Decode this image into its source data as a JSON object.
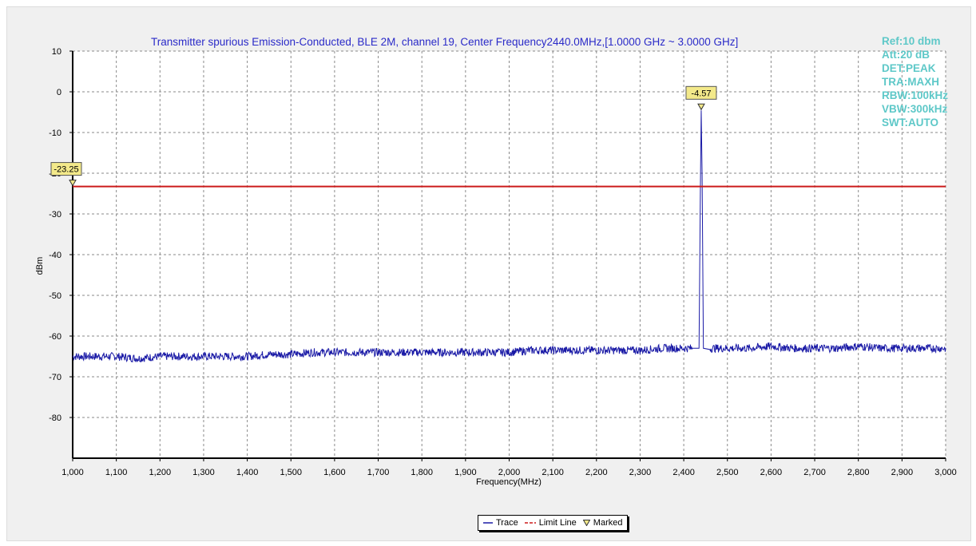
{
  "chart_data": {
    "type": "line",
    "title": "Transmitter spurious Emission-Conducted, BLE 2M, channel 19, Center Frequency2440.0MHz,[1.0000 GHz ~ 3.0000 GHz]",
    "xlabel": "Frequency(MHz)",
    "ylabel": "dBm",
    "xlim": [
      1000,
      3000
    ],
    "ylim": [
      -90,
      10
    ],
    "x_ticks": [
      "1,000",
      "1,100",
      "1,200",
      "1,300",
      "1,400",
      "1,500",
      "1,600",
      "1,700",
      "1,800",
      "1,900",
      "2,000",
      "2,100",
      "2,200",
      "2,300",
      "2,400",
      "2,500",
      "2,600",
      "2,700",
      "2,800",
      "2,900",
      "3,000"
    ],
    "y_ticks": [
      "10",
      "0",
      "-10",
      "-20",
      "-30",
      "-40",
      "-50",
      "-60",
      "-70",
      "-80"
    ],
    "grid": true,
    "legend_position": "bottom-center",
    "series": [
      {
        "name": "Trace",
        "color": "#1a1aa6",
        "x": [
          1000,
          1050,
          1100,
          1150,
          1200,
          1250,
          1300,
          1350,
          1400,
          1450,
          1500,
          1550,
          1600,
          1650,
          1700,
          1750,
          1800,
          1850,
          1900,
          1950,
          2000,
          2050,
          2100,
          2150,
          2200,
          2250,
          2300,
          2350,
          2400,
          2420,
          2435,
          2438,
          2440,
          2442,
          2445,
          2460,
          2500,
          2550,
          2600,
          2650,
          2700,
          2750,
          2800,
          2850,
          2900,
          2950,
          3000
        ],
        "values": [
          -65,
          -65,
          -65,
          -65.5,
          -65,
          -65,
          -65,
          -65,
          -65,
          -64.5,
          -64.5,
          -64,
          -64,
          -64,
          -64,
          -64,
          -64,
          -64,
          -64,
          -64,
          -64,
          -63.5,
          -63.5,
          -63.5,
          -63.5,
          -63.5,
          -63.5,
          -63,
          -63,
          -63,
          -63,
          -25,
          -4.57,
          -20,
          -63,
          -63,
          -63,
          -63,
          -62.5,
          -63,
          -63,
          -63,
          -62.5,
          -63,
          -63,
          -63,
          -63
        ]
      },
      {
        "name": "Limit Line",
        "color": "#cc1a1a",
        "x": [
          1000,
          3000
        ],
        "values": [
          -23.25,
          -23.25
        ]
      }
    ],
    "markers": [
      {
        "label": "-4.57",
        "x": 2440,
        "y": -4.57
      },
      {
        "label": "-23.25",
        "x": 1000,
        "y": -23.25
      }
    ],
    "legend_labels": [
      "Trace",
      "Limit Line",
      "Marked"
    ]
  },
  "settings": {
    "ref": "Ref:10 dbm",
    "att": "Att:20 dB",
    "det": "DET:PEAK",
    "tra": "TRA:MAXH",
    "rbw": "RBW:100kHz",
    "vbw": "VBW:300kHz",
    "swt": "SWT:AUTO"
  },
  "colors": {
    "title": "#2a2ac8",
    "settings": "#5ec8c8",
    "trace": "#1a1aa6",
    "limit": "#cc1a1a",
    "marker_fill": "#f3e98a"
  }
}
